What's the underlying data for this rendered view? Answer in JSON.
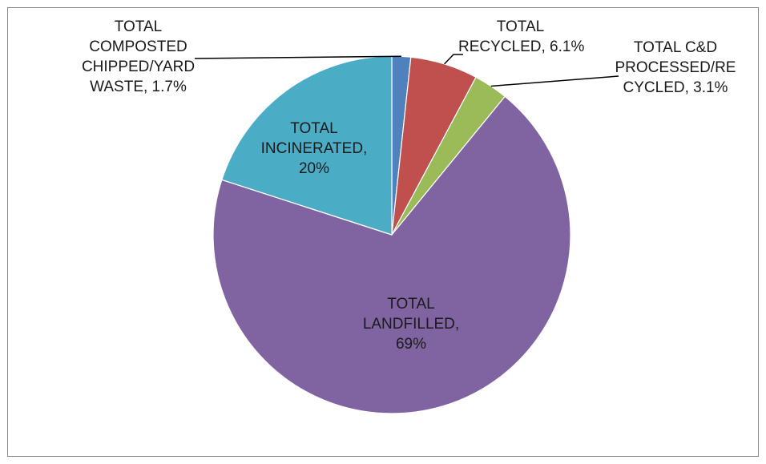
{
  "chart_data": {
    "type": "pie",
    "start_angle_deg": 0,
    "direction": "clockwise",
    "slices": [
      {
        "label_lines": [
          "TOTAL",
          "COMPOSTED",
          "CHIPPED/YARD",
          "WASTE, 1.7%"
        ],
        "value": 1.7,
        "color": "#4f81bd"
      },
      {
        "label_lines": [
          "TOTAL",
          "RECYCLED, 6.1%"
        ],
        "value": 6.1,
        "color": "#c0504d"
      },
      {
        "label_lines": [
          "TOTAL C&D",
          "PROCESSED/RE",
          "CYCLED, 3.1%"
        ],
        "value": 3.1,
        "color": "#9bbb59"
      },
      {
        "label_lines": [
          "TOTAL",
          "LANDFILLED,",
          "69%"
        ],
        "value": 69,
        "color": "#8064a2"
      },
      {
        "label_lines": [
          "TOTAL",
          "INCINERATED,",
          "20%"
        ],
        "value": 20,
        "color": "#4bacc6"
      }
    ],
    "legend": "none",
    "leader_line_color": "#000000"
  }
}
